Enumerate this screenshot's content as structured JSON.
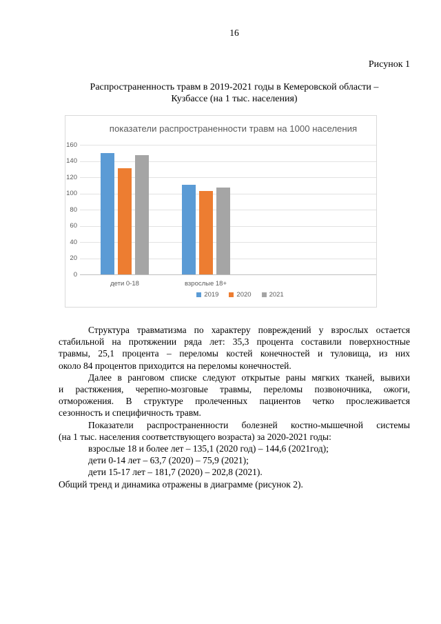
{
  "page": {
    "number": "16"
  },
  "figure": {
    "caption": "Рисунок 1",
    "title_lines": [
      "Распространенность травм в 2019-2021 годы в Кемеровской области –",
      "Кузбассе (на 1 тыс. населения)"
    ]
  },
  "chart_data": {
    "type": "bar",
    "title": "показатели распространенности травм на 1000 населения",
    "categories": [
      "дети 0-18",
      "взрослые 18+"
    ],
    "series": [
      {
        "name": "2019",
        "color": "#5B9BD5",
        "values": [
          150,
          111
        ]
      },
      {
        "name": "2020",
        "color": "#ED7D31",
        "values": [
          131,
          103
        ]
      },
      {
        "name": "2021",
        "color": "#A5A5A5",
        "values": [
          147,
          107
        ]
      }
    ],
    "xlabel": "",
    "ylabel": "",
    "ylim": [
      0,
      160
    ],
    "ytick_step": 20,
    "grid": true,
    "legend_position": "bottom",
    "colors": {
      "axis_text": "#595959",
      "gridline": "#e2e2e2",
      "axis_line": "#bfbfbf",
      "border": "#d9d9d9"
    }
  },
  "body": {
    "paragraphs": [
      {
        "lines": [
          {
            "t": "Структура травматизма по характеру повреждений у взрослых остается",
            "indent": true,
            "just": true
          },
          {
            "t": "стабильной на протяжении ряда лет: 35,3 процента составили поверхностные",
            "indent": false,
            "just": true
          },
          {
            "t": "травмы, 25,1 процента – переломы костей конечностей и туловища, из них",
            "indent": false,
            "just": true
          },
          {
            "t": "около 84 процентов приходится на переломы конечностей.",
            "indent": false,
            "just": false
          }
        ]
      },
      {
        "lines": [
          {
            "t": "Далее в ранговом списке следуют открытые раны мягких тканей, вывихи",
            "indent": true,
            "just": true
          },
          {
            "t": "и растяжения, черепно-мозговые травмы, переломы позвоночника, ожоги,",
            "indent": false,
            "just": true
          },
          {
            "t": "отморожения. В структуре пролеченных пациентов четко прослеживается",
            "indent": false,
            "just": true
          },
          {
            "t": "сезонность и специфичность травм.",
            "indent": false,
            "just": false
          }
        ]
      },
      {
        "lines": [
          {
            "t": "Показатели распространенности болезней костно-мышечной системы",
            "indent": true,
            "just": true
          },
          {
            "t": "(на 1 тыс. населения соответствующего возраста) за 2020-2021 годы:",
            "indent": false,
            "just": false
          },
          {
            "t": "взрослые 18 и более лет – 135,1 (2020 год) – 144,6 (2021год);",
            "indent": true,
            "just": false
          },
          {
            "t": "дети 0-14 лет – 63,7 (2020) – 75,9 (2021);",
            "indent": true,
            "just": false
          },
          {
            "t": "дети 15-17 лет – 181,7 (2020) – 202,8 (2021).",
            "indent": true,
            "just": false
          },
          {
            "t": "Общий тренд и динамика отражены в диаграмме (рисунок 2).",
            "indent": false,
            "just": false
          }
        ]
      }
    ]
  }
}
